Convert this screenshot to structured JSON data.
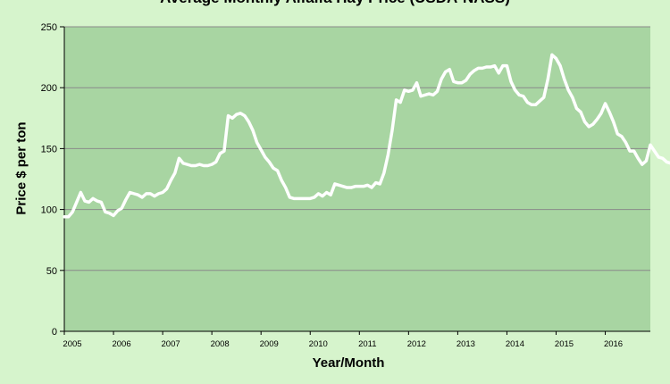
{
  "chart_data": {
    "type": "line",
    "title": "Average Monthly Alfalfa Hay Price (USDA-NASS)",
    "xlabel": "Year/Month",
    "ylabel": "Price $ per ton",
    "ylim": [
      0,
      250
    ],
    "yticks": [
      0,
      50,
      100,
      150,
      200,
      250
    ],
    "xticks": [
      "2005",
      "2006",
      "2007",
      "2008",
      "2009",
      "2010",
      "2011",
      "2012",
      "2013",
      "2014",
      "2015",
      "2016"
    ],
    "xstart": "2005-01",
    "grid": true,
    "legend": "none",
    "colors": {
      "plot_bg": "#a8d5a2",
      "line": "#ffffff",
      "frame_bg": "#d6f4cc",
      "grid": "#8a8a8a"
    },
    "series": [
      {
        "values": [
          94,
          94,
          98,
          106,
          114,
          107,
          106,
          109,
          107,
          106,
          98,
          97,
          95,
          99,
          101,
          108,
          114,
          113,
          112,
          110,
          113,
          113,
          111,
          113,
          114,
          117,
          124,
          130,
          142,
          138,
          137,
          136,
          136,
          137,
          136,
          136,
          137,
          139,
          146,
          148,
          177,
          175,
          178,
          179,
          177,
          172,
          165,
          155,
          149,
          143,
          139,
          134,
          132,
          124,
          118,
          110,
          109,
          109,
          109,
          109,
          109,
          110,
          113,
          111,
          114,
          112,
          121,
          120,
          119,
          118,
          118,
          119,
          119,
          119,
          120,
          118,
          122,
          121,
          130,
          145,
          165,
          190,
          188,
          198,
          197,
          198,
          204,
          193,
          194,
          195,
          194,
          197,
          207,
          213,
          215,
          205,
          204,
          204,
          206,
          211,
          214,
          216,
          216,
          217,
          217,
          218,
          212,
          218,
          218,
          205,
          198,
          194,
          193,
          188,
          186,
          186,
          189,
          192,
          207,
          227,
          224,
          218,
          207,
          198,
          192,
          183,
          180,
          172,
          168,
          170,
          174,
          179,
          187,
          180,
          172,
          162,
          160,
          155,
          148,
          148,
          142,
          137,
          140,
          153,
          148,
          143,
          142,
          139,
          138,
          137
        ]
      }
    ]
  }
}
